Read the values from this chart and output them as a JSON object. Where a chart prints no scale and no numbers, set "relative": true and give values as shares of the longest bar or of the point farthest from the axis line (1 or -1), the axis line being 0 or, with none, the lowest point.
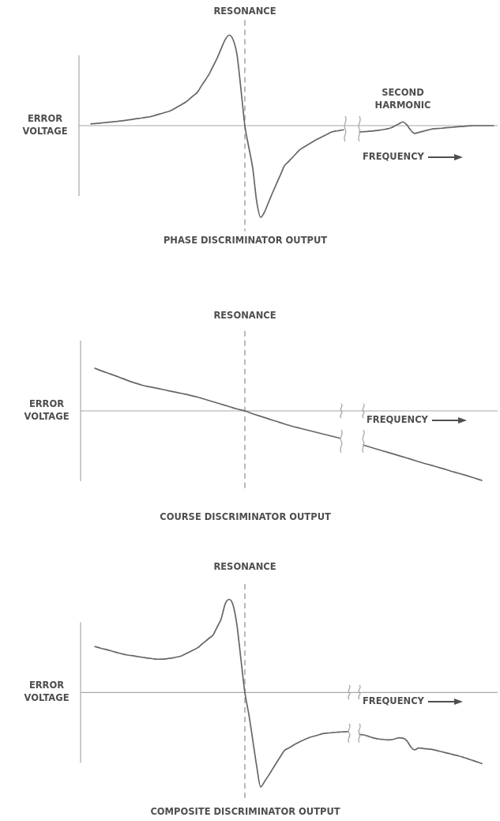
{
  "chart_data": [
    {
      "type": "line",
      "title": "PHASE DISCRIMINATOR OUTPUT",
      "xlabel": "FREQUENCY",
      "ylabel": "ERROR VOLTAGE",
      "annotations": [
        "RESONANCE",
        "SECOND HARMONIC"
      ],
      "relative": true,
      "marker": "none",
      "line_style": "solid",
      "categories": [
        null,
        null,
        null,
        null,
        null,
        null,
        null,
        null,
        null,
        null,
        null,
        null,
        null,
        null,
        null,
        null,
        null,
        null,
        null,
        null,
        null,
        null,
        null,
        null,
        null,
        null,
        null,
        null,
        null,
        null,
        null,
        null,
        null,
        null,
        null,
        null,
        null,
        null,
        null,
        null,
        null,
        null,
        null,
        null,
        null,
        null,
        null,
        null,
        null,
        null,
        null,
        null,
        null,
        null,
        null,
        null,
        null,
        null,
        null,
        null,
        null,
        null,
        null,
        null,
        null,
        null,
        null,
        null,
        null,
        null,
        null,
        null,
        null,
        null,
        null,
        null,
        null,
        null,
        null,
        null,
        null,
        null,
        null,
        null,
        null,
        null,
        null,
        null,
        null,
        null,
        null,
        null,
        null,
        null,
        null,
        null,
        null,
        null,
        null,
        null,
        null,
        null,
        null
      ],
      "series": [
        {
          "color": "#666666",
          "values": [
            0.019,
            0.022,
            0.027,
            0.031,
            0.035,
            0.04,
            0.044,
            0.048,
            0.053,
            0.059,
            0.065,
            0.072,
            0.078,
            0.084,
            0.091,
            0.097,
            0.109,
            0.122,
            0.134,
            0.147,
            0.159,
            0.18,
            0.206,
            0.231,
            0.256,
            0.29,
            0.328,
            0.365,
            0.434,
            0.498,
            0.566,
            0.653,
            0.739,
            0.84,
            0.937,
            0.987,
            0.94,
            0.776,
            0.4,
            0,
            -0.237,
            -0.466,
            -0.828,
            -1,
            -0.94,
            -0.836,
            -0.733,
            -0.634,
            -0.537,
            -0.44,
            -0.395,
            -0.349,
            -0.304,
            -0.259,
            -0.233,
            -0.207,
            -0.181,
            -0.155,
            -0.134,
            -0.112,
            -0.091,
            -0.069,
            -0.06,
            -0.053,
            -0.045,
            null,
            null,
            null,
            null,
            null,
            null,
            null,
            null,
            null,
            null,
            null,
            null,
            null,
            null,
            null,
            null,
            null,
            null,
            null,
            null,
            null,
            null,
            null,
            null,
            null,
            null,
            null,
            null,
            null,
            null,
            null,
            null,
            null,
            null,
            null,
            null,
            null,
            null
          ]
        },
        {
          "color": "#666666",
          "values": [
            null,
            null,
            null,
            null,
            null,
            null,
            null,
            null,
            null,
            null,
            null,
            null,
            null,
            null,
            null,
            null,
            null,
            null,
            null,
            null,
            null,
            null,
            null,
            null,
            null,
            null,
            null,
            null,
            null,
            null,
            null,
            null,
            null,
            null,
            null,
            null,
            null,
            null,
            null,
            null,
            null,
            null,
            null,
            null,
            null,
            null,
            null,
            null,
            null,
            null,
            null,
            null,
            null,
            null,
            null,
            null,
            null,
            null,
            null,
            null,
            null,
            null,
            null,
            null,
            null,
            null,
            null,
            null,
            -0.069,
            -0.066,
            -0.064,
            -0.06,
            -0.055,
            -0.05,
            -0.043,
            -0.036,
            -0.024,
            -0.003,
            0.02,
            0.041,
            0.009,
            -0.05,
            -0.085,
            -0.074,
            -0.063,
            -0.052,
            -0.041,
            -0.034,
            -0.031,
            -0.028,
            -0.023,
            -0.02,
            -0.016,
            -0.012,
            -0.009,
            -0.005,
            -0.003,
            0,
            0,
            0,
            0,
            0,
            0
          ]
        }
      ]
    },
    {
      "type": "line",
      "title": "COURSE DISCRIMINATOR OUTPUT",
      "xlabel": "FREQUENCY",
      "ylabel": "ERROR VOLTAGE",
      "annotations": [
        "RESONANCE"
      ],
      "relative": true,
      "marker": "none",
      "line_style": "solid",
      "categories": [
        null,
        null,
        null,
        null,
        null,
        null,
        null,
        null,
        null,
        null,
        null,
        null,
        null,
        null,
        null,
        null,
        null,
        null,
        null,
        null,
        null,
        null,
        null,
        null,
        null,
        null,
        null,
        null,
        null,
        null,
        null,
        null,
        null,
        null,
        null,
        null,
        null,
        null,
        null,
        null,
        null,
        null,
        null,
        null,
        null,
        null,
        null,
        null,
        null,
        null
      ],
      "series": [
        {
          "color": "#666666",
          "values": [
            0.613,
            0.57,
            0.53,
            0.488,
            0.445,
            0.405,
            0.369,
            0.345,
            0.322,
            0.298,
            0.274,
            0.25,
            0.226,
            0.199,
            0.165,
            0.131,
            0.097,
            0.063,
            0.028,
            0,
            -0.043,
            -0.078,
            -0.115,
            -0.151,
            -0.188,
            -0.222,
            -0.25,
            -0.278,
            -0.307,
            -0.335,
            -0.364,
            -0.392,
            null,
            null,
            null,
            null,
            null,
            null,
            null,
            null,
            null,
            null,
            null,
            null,
            null,
            null,
            null,
            null,
            null,
            null
          ]
        },
        {
          "color": "#666666",
          "values": [
            null,
            null,
            null,
            null,
            null,
            null,
            null,
            null,
            null,
            null,
            null,
            null,
            null,
            null,
            null,
            null,
            null,
            null,
            null,
            null,
            null,
            null,
            null,
            null,
            null,
            null,
            null,
            null,
            null,
            null,
            null,
            null,
            null,
            null,
            -0.491,
            -0.525,
            -0.559,
            -0.593,
            -0.627,
            -0.661,
            -0.695,
            -0.73,
            -0.764,
            -0.795,
            -0.828,
            -0.863,
            -0.895,
            -0.928,
            -0.963,
            -1
          ]
        }
      ]
    },
    {
      "type": "line",
      "title": "COMPOSITE DISCRIMINATOR OUTPUT",
      "xlabel": "FREQUENCY",
      "ylabel": "ERROR VOLTAGE",
      "annotations": [
        "RESONANCE"
      ],
      "relative": true,
      "marker": "none",
      "line_style": "solid",
      "categories": [
        null,
        null,
        null,
        null,
        null,
        null,
        null,
        null,
        null,
        null,
        null,
        null,
        null,
        null,
        null,
        null,
        null,
        null,
        null,
        null,
        null,
        null,
        null,
        null,
        null,
        null,
        null,
        null,
        null,
        null,
        null,
        null,
        null,
        null,
        null,
        null,
        null,
        null,
        null,
        null,
        null,
        null,
        null,
        null,
        null,
        null,
        null,
        null,
        null,
        null,
        null,
        null,
        null,
        null,
        null,
        null,
        null,
        null,
        null,
        null,
        null,
        null,
        null,
        null,
        null,
        null,
        null,
        null,
        null,
        null,
        null,
        null,
        null,
        null,
        null,
        null,
        null,
        null,
        null,
        null,
        null,
        null,
        null,
        null,
        null,
        null,
        null,
        null,
        null,
        null,
        null,
        null,
        null,
        null,
        null,
        null,
        null,
        null,
        null
      ],
      "series": [
        {
          "color": "#666666",
          "values": [
            0.487,
            0.476,
            0.464,
            0.454,
            0.443,
            0.431,
            0.42,
            0.409,
            0.399,
            0.393,
            0.387,
            0.38,
            0.374,
            0.367,
            0.362,
            0.356,
            0.353,
            0.354,
            0.357,
            0.362,
            0.369,
            0.378,
            0.389,
            0.41,
            0.431,
            0.452,
            0.473,
            0.508,
            0.542,
            0.577,
            0.613,
            0.696,
            0.78,
            0.936,
            0.987,
            0.928,
            0.712,
            0.353,
            0,
            -0.23,
            -0.503,
            -0.782,
            -1,
            -0.941,
            -0.878,
            -0.811,
            -0.743,
            -0.678,
            -0.615,
            -0.59,
            -0.565,
            -0.54,
            -0.519,
            -0.5,
            -0.482,
            -0.467,
            -0.456,
            -0.444,
            -0.433,
            -0.429,
            -0.425,
            -0.421,
            -0.418,
            -0.416,
            -0.414,
            null,
            null,
            null,
            null,
            null,
            null,
            null,
            null,
            null,
            null,
            null,
            null,
            null,
            null,
            null,
            null,
            null,
            null,
            null,
            null,
            null,
            null,
            null,
            null,
            null,
            null,
            null,
            null,
            null,
            null,
            null,
            null,
            null,
            null
          ]
        },
        {
          "color": "#666666",
          "values": [
            null,
            null,
            null,
            null,
            null,
            null,
            null,
            null,
            null,
            null,
            null,
            null,
            null,
            null,
            null,
            null,
            null,
            null,
            null,
            null,
            null,
            null,
            null,
            null,
            null,
            null,
            null,
            null,
            null,
            null,
            null,
            null,
            null,
            null,
            null,
            null,
            null,
            null,
            null,
            null,
            null,
            null,
            null,
            null,
            null,
            null,
            null,
            null,
            null,
            null,
            null,
            null,
            null,
            null,
            null,
            null,
            null,
            null,
            null,
            null,
            null,
            null,
            null,
            null,
            null,
            null,
            null,
            -0.444,
            -0.448,
            -0.46,
            -0.473,
            -0.485,
            -0.492,
            -0.496,
            -0.501,
            -0.5,
            -0.49,
            -0.479,
            -0.483,
            -0.51,
            -0.573,
            -0.607,
            -0.587,
            -0.592,
            -0.596,
            -0.6,
            -0.608,
            -0.618,
            -0.628,
            -0.639,
            -0.649,
            -0.66,
            -0.67,
            -0.681,
            -0.695,
            -0.709,
            -0.723,
            -0.737,
            -0.752
          ]
        }
      ]
    }
  ]
}
